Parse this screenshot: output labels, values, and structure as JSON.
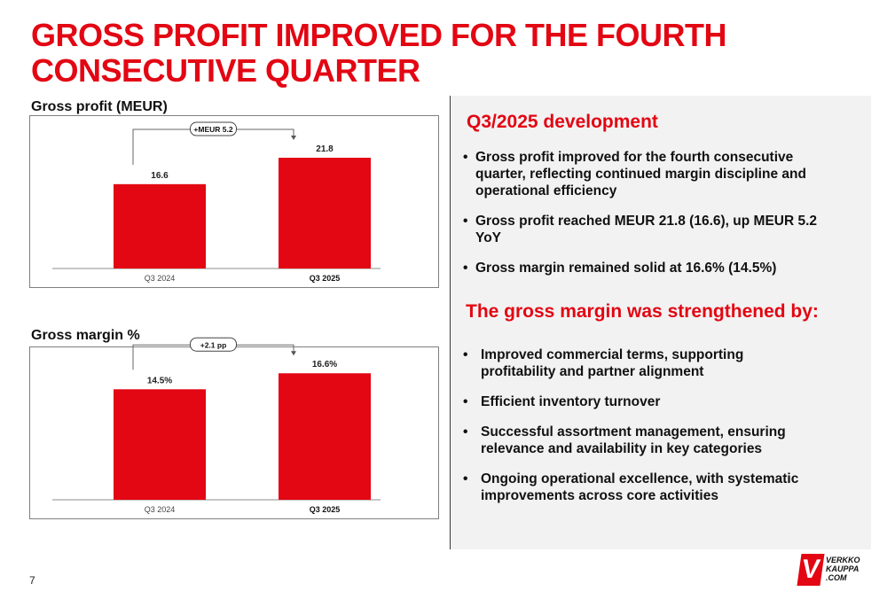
{
  "title": "GROSS PROFIT IMPROVED FOR THE FOURTH CONSECUTIVE QUARTER",
  "page_number": "7",
  "chart_data": [
    {
      "type": "bar",
      "title": "Gross profit (MEUR)",
      "categories": [
        "Q3 2024",
        "Q3 2025"
      ],
      "values": [
        16.6,
        21.8
      ],
      "value_labels": [
        "16.6",
        "21.8"
      ],
      "bold_category": "Q3 2025",
      "ylim": [
        0,
        30
      ],
      "delta_label": "+MEUR 5.2",
      "xlabel": "",
      "ylabel": ""
    },
    {
      "type": "bar",
      "title": "Gross margin %",
      "categories": [
        "Q3 2024",
        "Q3 2025"
      ],
      "values": [
        14.5,
        16.6
      ],
      "value_labels": [
        "14.5%",
        "16.6%"
      ],
      "bold_category": "Q3 2025",
      "ylim": [
        0,
        20
      ],
      "delta_label": "+2.1 pp",
      "xlabel": "",
      "ylabel": ""
    }
  ],
  "panel": {
    "heading1": "Q3/2025 development",
    "bullets1": [
      "Gross profit improved for the fourth consecutive quarter, reflecting continued margin discipline and operational efficiency",
      "Gross profit reached MEUR 21.8 (16.6), up MEUR 5.2 YoY",
      "Gross margin remained solid at 16.6% (14.5%)"
    ],
    "heading2": "The gross margin was strengthened by:",
    "bullets2": [
      "Improved commercial terms, supporting profitability and partner alignment",
      "Efficient inventory turnover",
      "Successful assortment management, ensuring relevance and availability in key categories",
      "Ongoing operational excellence, with systematic improvements across core activities"
    ]
  },
  "logo": {
    "mark": "V",
    "line1": "VERKKO",
    "line2": "KAUPPA",
    "line3": ".COM"
  },
  "colors": {
    "accent": "#e30613",
    "panel_bg": "#f2f2f2"
  }
}
